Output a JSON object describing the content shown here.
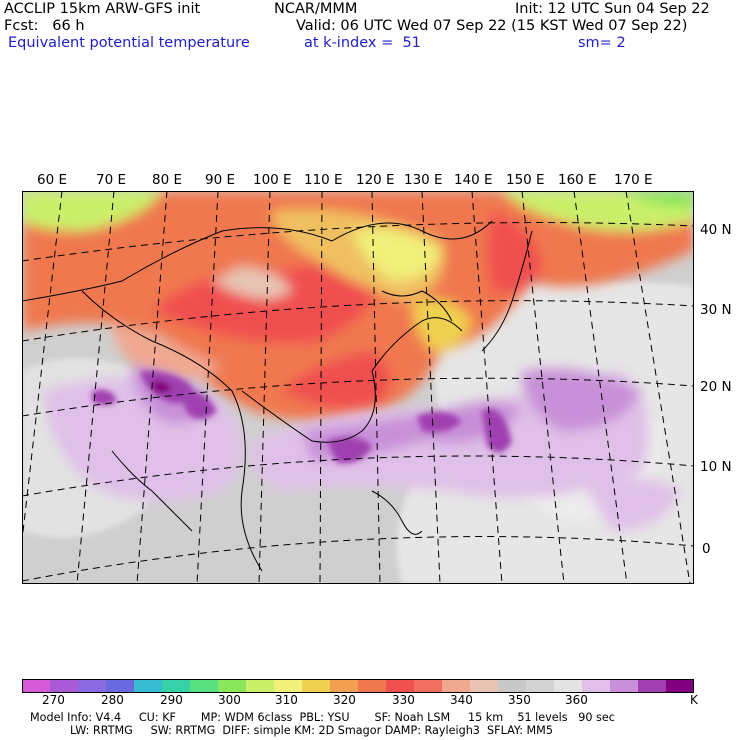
{
  "header": {
    "left_line1": "ACCLIP 15km ARW-GFS init",
    "left_line2": "Fcst:   66 h",
    "left_line3": "Equivalent potential temperature",
    "center_line1": "NCAR/MMM",
    "center_line2": "Valid: 06 UTC Wed 07 Sep 22 (15 KST Wed 07 Sep 22)",
    "center_line3": "at k-index =  51",
    "right_line1": "Init: 12 UTC Sun 04 Sep 22",
    "right_line3": "sm= 2"
  },
  "map": {
    "longitude_labels": [
      "60 E",
      "70 E",
      "80 E",
      "90 E",
      "100 E",
      "110 E",
      "120 E",
      "130 E",
      "140 E",
      "150 E",
      "160 E",
      "170 E"
    ],
    "latitude_labels": [
      "40 N",
      "30 N",
      "20 N",
      "10 N",
      "0"
    ],
    "field": "equivalent potential temperature"
  },
  "colorbar": {
    "colors": [
      "#d75ad7",
      "#a85ad7",
      "#8a6ae0",
      "#6a6ae0",
      "#38bcd4",
      "#38d2a8",
      "#5ae080",
      "#8ae65a",
      "#caf06a",
      "#f0f07a",
      "#f0d050",
      "#f0a050",
      "#f07850",
      "#f05050",
      "#f07060",
      "#f0a890",
      "#e8c4b4",
      "#c8c8c8",
      "#d2d2d2",
      "#e4e4e4",
      "#e0c0e8",
      "#c890d8",
      "#a040b0",
      "#800080"
    ],
    "labels": [
      "270",
      "280",
      "290",
      "300",
      "310",
      "320",
      "330",
      "340",
      "350",
      "360"
    ],
    "unit": "K"
  },
  "footer": {
    "line1": "Model Info: V4.4     CU: KF       MP: WDM 6class  PBL: YSU       SF: Noah LSM     15 km    51 levels   90 sec",
    "line2": "LW: RRTMG     SW: RRTMG  DIFF: simple KM: 2D Smagor DAMP: Rayleigh3  SFLAY: MM5"
  }
}
